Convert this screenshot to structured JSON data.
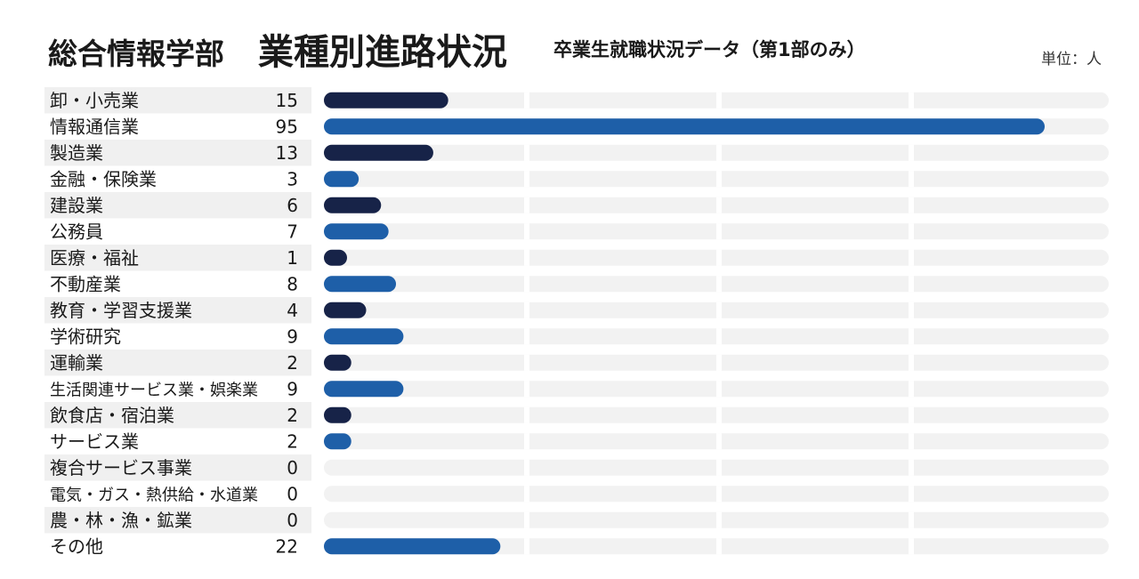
{
  "header": {
    "department": "総合情報学部",
    "title": "業種別進路状況",
    "subtitle": "卒業生就職状況データ（第1部のみ）",
    "unit": "単位：人"
  },
  "colors": {
    "dark": "#172348",
    "blue": "#1e5fa8",
    "track": "#f2f2f2",
    "label_bg": "#f0f0f0"
  },
  "chart_data": {
    "type": "bar",
    "orientation": "horizontal",
    "xlim": [
      0,
      100
    ],
    "grid": true,
    "categories": [
      "卸・小売業",
      "情報通信業",
      "製造業",
      "金融・保険業",
      "建設業",
      "公務員",
      "医療・福祉",
      "不動産業",
      "教育・学習支援業",
      "学術研究",
      "運輸業",
      "生活関連サービス業・娯楽業",
      "飲食店・宿泊業",
      "サービス業",
      "複合サービス事業",
      "電気・ガス・熱供給・水道業",
      "農・林・漁・鉱業",
      "その他"
    ],
    "values": [
      15,
      95,
      13,
      3,
      6,
      7,
      1,
      8,
      4,
      9,
      2,
      9,
      2,
      2,
      0,
      0,
      0,
      22
    ],
    "bar_colors": [
      "dark",
      "blue",
      "dark",
      "blue",
      "dark",
      "blue",
      "dark",
      "blue",
      "dark",
      "blue",
      "dark",
      "blue",
      "dark",
      "blue",
      "dark",
      "blue",
      "dark",
      "blue"
    ]
  }
}
